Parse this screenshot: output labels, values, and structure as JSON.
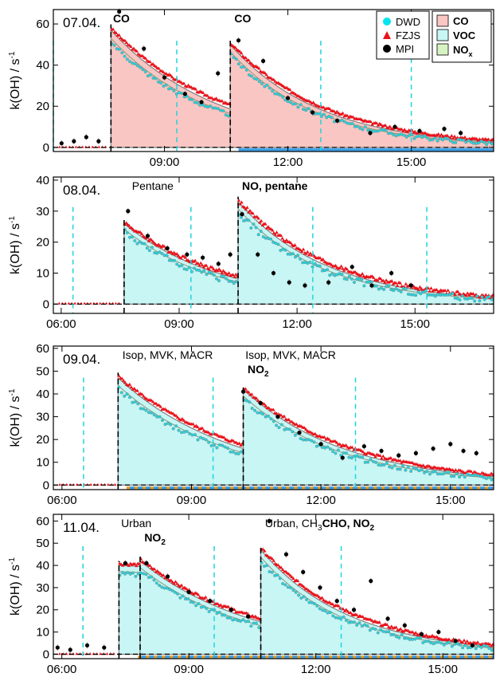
{
  "chart_data": [
    {
      "type": "area",
      "date": "07.04.",
      "ylabel": "k(OH) / s",
      "ylabel_superscript": "-1",
      "ylim": [
        -2,
        67
      ],
      "yticks": [
        0,
        20,
        40,
        60
      ],
      "xlim": [
        6.3,
        17.0
      ],
      "xticks": [
        {
          "v": 9,
          "label": "09:00"
        },
        {
          "v": 12,
          "label": "12:00"
        },
        {
          "v": 15,
          "label": "15:00"
        }
      ],
      "show_xtick_labels": true,
      "legend_markers": [
        {
          "label": "DWD",
          "color": "#00e5ee",
          "shape": "circle"
        },
        {
          "label": "FZJS",
          "color": "#e8131b",
          "shape": "triangle"
        },
        {
          "label": "MPI",
          "color": "#000000",
          "shape": "circle"
        }
      ],
      "legend_areas": [
        {
          "label": "CO",
          "color": "#f9c6c3"
        },
        {
          "label": "VOC",
          "color": "#c7f6f5"
        },
        {
          "label": "NO",
          "sub": "x",
          "color": "#d7f3c3"
        }
      ],
      "fill_color": "#f9c6c3",
      "model_segments": [
        {
          "start": 7.7,
          "end": 10.6,
          "peak": 57,
          "decay": 2.6,
          "floor": 0
        },
        {
          "start": 10.6,
          "end": 17.0,
          "peak": 50,
          "decay": 2.2,
          "floor": 0
        }
      ],
      "injection_times": [
        7.7,
        10.6
      ],
      "injection_labels": [
        {
          "x": 7.75,
          "text": "CO",
          "sub": "",
          "rest": "",
          "bold": true
        },
        {
          "x": 10.7,
          "text": "CO",
          "sub": "",
          "rest": "",
          "bold": true
        }
      ],
      "dwd_vlines": [
        6.3,
        9.3,
        12.8,
        15.0
      ],
      "baseline_dwd": {
        "start": 10.8,
        "end": 17.0,
        "color": "#3fa0e8"
      },
      "baseline_orange": null,
      "mpi_points": [
        {
          "x": 6.5,
          "y": 2
        },
        {
          "x": 6.8,
          "y": 3
        },
        {
          "x": 7.1,
          "y": 5
        },
        {
          "x": 7.4,
          "y": 3
        },
        {
          "x": 7.9,
          "y": 66
        },
        {
          "x": 8.5,
          "y": 48
        },
        {
          "x": 9.0,
          "y": 34
        },
        {
          "x": 9.5,
          "y": 26
        },
        {
          "x": 9.9,
          "y": 22
        },
        {
          "x": 10.3,
          "y": 36
        },
        {
          "x": 10.8,
          "y": 52
        },
        {
          "x": 11.4,
          "y": 42
        },
        {
          "x": 12.0,
          "y": 24
        },
        {
          "x": 12.6,
          "y": 17
        },
        {
          "x": 13.2,
          "y": 13
        },
        {
          "x": 14.0,
          "y": 7
        },
        {
          "x": 14.6,
          "y": 10
        },
        {
          "x": 15.2,
          "y": 8
        },
        {
          "x": 15.8,
          "y": 9
        },
        {
          "x": 16.2,
          "y": 7
        }
      ]
    },
    {
      "type": "area",
      "date": "08.04.",
      "ylabel": "k(OH) / s",
      "ylabel_superscript": "-1",
      "ylim": [
        -3,
        41
      ],
      "yticks": [
        0,
        10,
        20,
        30,
        40
      ],
      "xlim": [
        5.8,
        17.0
      ],
      "xticks": [
        {
          "v": 6,
          "label": "06:00"
        },
        {
          "v": 9,
          "label": "09:00"
        },
        {
          "v": 12,
          "label": "12:00"
        },
        {
          "v": 15,
          "label": "15:00"
        }
      ],
      "show_xtick_labels": true,
      "fill_color": "#c7f6f5",
      "model_segments": [
        {
          "start": 7.6,
          "end": 10.5,
          "peak": 26,
          "decay": 2.5,
          "floor": 0
        },
        {
          "start": 10.5,
          "end": 17.0,
          "peak": 33,
          "decay": 2.3,
          "floor": 0
        }
      ],
      "injection_times": [
        7.6,
        10.5
      ],
      "injection_labels": [
        {
          "x": 7.8,
          "text": "Pentane",
          "sub": "",
          "rest": "",
          "bold": false
        },
        {
          "x": 10.6,
          "text": "NO, pentane",
          "sub": "",
          "rest": "",
          "bold": true
        }
      ],
      "dwd_vlines": [
        6.3,
        9.3,
        12.4,
        15.3
      ],
      "baseline_dwd": null,
      "baseline_orange": null,
      "mpi_points": [
        {
          "x": 7.7,
          "y": 30
        },
        {
          "x": 8.2,
          "y": 22
        },
        {
          "x": 8.7,
          "y": 18
        },
        {
          "x": 9.2,
          "y": 16
        },
        {
          "x": 9.6,
          "y": 15
        },
        {
          "x": 10.0,
          "y": 13
        },
        {
          "x": 10.3,
          "y": 16
        },
        {
          "x": 10.6,
          "y": 29
        },
        {
          "x": 11.0,
          "y": 16
        },
        {
          "x": 11.4,
          "y": 10
        },
        {
          "x": 11.8,
          "y": 7
        },
        {
          "x": 12.2,
          "y": 6
        },
        {
          "x": 12.8,
          "y": 7
        },
        {
          "x": 13.4,
          "y": 12
        },
        {
          "x": 13.9,
          "y": 6
        },
        {
          "x": 14.4,
          "y": 10
        },
        {
          "x": 14.9,
          "y": 6
        }
      ]
    },
    {
      "type": "area",
      "date": "09.04.",
      "ylabel": "k(OH) / s",
      "ylabel_superscript": "-1",
      "ylim": [
        -2,
        61
      ],
      "yticks": [
        0,
        10,
        20,
        30,
        40,
        50,
        60
      ],
      "xlim": [
        5.8,
        16.0
      ],
      "xticks": [
        {
          "v": 6,
          "label": "06:00"
        },
        {
          "v": 9,
          "label": "09:00"
        },
        {
          "v": 12,
          "label": "12:00"
        },
        {
          "v": 15,
          "label": "15:00"
        }
      ],
      "show_xtick_labels": true,
      "fill_color": "#c7f6f5",
      "model_segments": [
        {
          "start": 7.3,
          "end": 10.2,
          "peak": 47,
          "decay": 2.7,
          "floor": 0
        },
        {
          "start": 10.2,
          "end": 16.0,
          "peak": 42,
          "decay": 2.4,
          "floor": 0
        }
      ],
      "injection_times": [
        7.3,
        10.2
      ],
      "injection_labels": [
        {
          "x": 7.4,
          "text": "Isop, MVK, MACR",
          "sub": "",
          "rest": "",
          "bold": false
        },
        {
          "x": 10.25,
          "text": "Isop, MVK, MACR",
          "sub": "",
          "rest": "",
          "bold": false
        },
        {
          "x": 10.3,
          "text": "NO",
          "sub": "2",
          "rest": "",
          "bold": true,
          "row": 2
        }
      ],
      "dwd_vlines": [
        6.5,
        9.5,
        12.8
      ],
      "baseline_dwd": {
        "start": 7.5,
        "end": 16.0,
        "color": "#3fa0e8"
      },
      "baseline_orange": {
        "start": 7.5,
        "end": 16.0,
        "color": "#f0a020"
      },
      "mpi_points": [
        {
          "x": 10.2,
          "y": 41
        },
        {
          "x": 10.6,
          "y": 36
        },
        {
          "x": 11.0,
          "y": 30
        },
        {
          "x": 11.5,
          "y": 23
        },
        {
          "x": 12.0,
          "y": 18
        },
        {
          "x": 12.5,
          "y": 12
        },
        {
          "x": 13.0,
          "y": 17
        },
        {
          "x": 13.4,
          "y": 15
        },
        {
          "x": 13.8,
          "y": 13
        },
        {
          "x": 14.2,
          "y": 14
        },
        {
          "x": 14.6,
          "y": 16
        },
        {
          "x": 15.0,
          "y": 18
        },
        {
          "x": 15.3,
          "y": 15
        },
        {
          "x": 15.6,
          "y": 14
        }
      ]
    },
    {
      "type": "area",
      "date": "11.04.",
      "ylabel": "k(OH) / s",
      "ylabel_superscript": "-1",
      "ylim": [
        -2,
        63
      ],
      "yticks": [
        0,
        10,
        20,
        30,
        40,
        50,
        60
      ],
      "xlim": [
        5.8,
        16.2
      ],
      "xticks": [
        {
          "v": 6,
          "label": "06:00"
        },
        {
          "v": 9,
          "label": "09:00"
        },
        {
          "v": 12,
          "label": "12:00"
        },
        {
          "v": 15,
          "label": "15:00"
        }
      ],
      "show_xtick_labels": true,
      "fill_color": "#c7f6f5",
      "model_segments": [
        {
          "start": 7.35,
          "end": 7.85,
          "peak": 40,
          "decay": 50,
          "floor": 0
        },
        {
          "start": 7.85,
          "end": 10.7,
          "peak": 42,
          "decay": 2.7,
          "floor": 0
        },
        {
          "start": 10.7,
          "end": 16.2,
          "peak": 47,
          "decay": 2.1,
          "floor": 0
        }
      ],
      "injection_times": [
        7.35,
        7.85,
        10.7
      ],
      "injection_labels": [
        {
          "x": 7.4,
          "text": "Urban",
          "sub": "",
          "rest": "",
          "bold": false
        },
        {
          "x": 7.95,
          "text": "NO",
          "sub": "2",
          "rest": "",
          "bold": true,
          "row": 2
        },
        {
          "x": 10.8,
          "text": "Urban, CH",
          "sub": "3",
          "rest": "CHO, NO",
          "sub2": "2",
          "bold": false
        }
      ],
      "dwd_vlines": [
        6.5,
        9.6,
        12.6
      ],
      "baseline_dwd": {
        "start": 7.8,
        "end": 16.2,
        "color": "#3fa0e8"
      },
      "baseline_orange": {
        "start": 7.8,
        "end": 16.2,
        "color": "#f0a020"
      },
      "mpi_points": [
        {
          "x": 5.9,
          "y": 3
        },
        {
          "x": 6.2,
          "y": 2
        },
        {
          "x": 6.6,
          "y": 4
        },
        {
          "x": 7.0,
          "y": 3
        },
        {
          "x": 7.5,
          "y": 41
        },
        {
          "x": 8.0,
          "y": 41
        },
        {
          "x": 8.5,
          "y": 35
        },
        {
          "x": 9.0,
          "y": 28
        },
        {
          "x": 9.5,
          "y": 24
        },
        {
          "x": 10.0,
          "y": 20
        },
        {
          "x": 10.4,
          "y": 17
        },
        {
          "x": 10.9,
          "y": 60
        },
        {
          "x": 11.3,
          "y": 45
        },
        {
          "x": 11.7,
          "y": 37
        },
        {
          "x": 12.1,
          "y": 30
        },
        {
          "x": 12.5,
          "y": 24
        },
        {
          "x": 12.9,
          "y": 20
        },
        {
          "x": 13.3,
          "y": 33
        },
        {
          "x": 13.7,
          "y": 16
        },
        {
          "x": 14.1,
          "y": 13
        },
        {
          "x": 14.5,
          "y": 9
        },
        {
          "x": 14.9,
          "y": 10
        },
        {
          "x": 15.3,
          "y": 6
        },
        {
          "x": 15.7,
          "y": 4
        }
      ]
    }
  ]
}
